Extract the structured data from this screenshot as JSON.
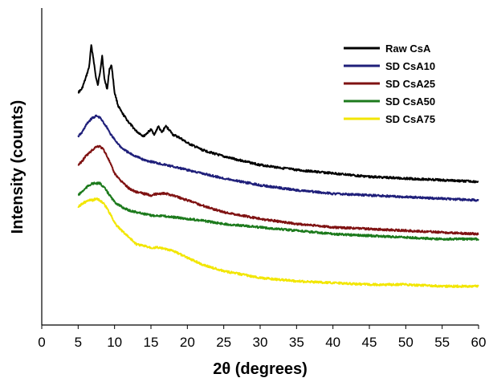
{
  "chart_data": {
    "type": "line",
    "title": "",
    "xlabel": "2θ (degrees)",
    "ylabel": "Intensity (counts)",
    "xlim": [
      0,
      60
    ],
    "x_ticks": [
      0,
      5,
      10,
      15,
      20,
      25,
      30,
      35,
      40,
      45,
      50,
      55,
      60
    ],
    "y_ticks_labeled": false,
    "grid": false,
    "legend_position": "top-right",
    "series": [
      {
        "name": "Raw CsA",
        "color": "#000000",
        "x": [
          5,
          5.5,
          6,
          6.5,
          6.8,
          7.1,
          7.4,
          7.7,
          8.0,
          8.3,
          8.6,
          9.0,
          9.3,
          9.6,
          10,
          10.5,
          11,
          12,
          13,
          14,
          15,
          15.5,
          16,
          16.5,
          17,
          17.5,
          18,
          19,
          20,
          22,
          25,
          30,
          35,
          40,
          45,
          50,
          55,
          60
        ],
        "y": [
          88,
          90,
          96,
          103,
          116,
          108,
          98,
          92,
          100,
          110,
          96,
          90,
          102,
          104,
          88,
          80,
          76,
          70,
          65,
          62,
          66,
          63,
          68,
          64,
          68,
          66,
          63,
          61,
          58,
          54,
          50,
          45,
          42,
          40,
          38,
          37,
          36,
          35
        ]
      },
      {
        "name": "SD CsA10",
        "color": "#1f1f7a",
        "x": [
          5,
          5.5,
          6,
          6.5,
          7,
          7.5,
          8,
          8.5,
          9,
          9.5,
          10,
          11,
          12,
          13,
          14,
          15,
          16,
          18,
          20,
          22,
          25,
          30,
          35,
          40,
          45,
          50,
          55,
          60
        ],
        "y": [
          62,
          64,
          68,
          71,
          73,
          74,
          73,
          70,
          67,
          63,
          60,
          55,
          52,
          50,
          48,
          47,
          46,
          44,
          42,
          40,
          37,
          33,
          30,
          28,
          27,
          26,
          25,
          24
        ]
      },
      {
        "name": "SD CsA25",
        "color": "#7f1212",
        "x": [
          5,
          5.5,
          6,
          6.5,
          7,
          7.5,
          8,
          8.5,
          9,
          9.5,
          10,
          11,
          12,
          13,
          14,
          15,
          16,
          17,
          18,
          20,
          22,
          25,
          30,
          35,
          40,
          45,
          50,
          55,
          60
        ],
        "y": [
          45,
          47,
          50,
          52,
          54,
          56,
          56,
          54,
          50,
          45,
          40,
          35,
          31,
          29,
          28,
          27,
          28,
          28,
          27,
          24,
          21,
          17,
          13,
          10,
          8,
          7,
          6,
          5,
          4
        ]
      },
      {
        "name": "SD CsA50",
        "color": "#1c7a1c",
        "x": [
          5,
          5.5,
          6,
          6.5,
          7,
          7.5,
          8,
          8.5,
          9,
          9.5,
          10,
          11,
          12,
          13,
          14,
          15,
          16,
          18,
          20,
          22,
          25,
          30,
          35,
          40,
          45,
          50,
          55,
          60
        ],
        "y": [
          27,
          29,
          31,
          33,
          34,
          34,
          34,
          32,
          29,
          26,
          23,
          20,
          18,
          17,
          16,
          15,
          15,
          14,
          13,
          12,
          10,
          8,
          6,
          4,
          3,
          2,
          1,
          1
        ]
      },
      {
        "name": "SD CsA75",
        "color": "#f2e600",
        "x": [
          5,
          5.5,
          6,
          6.5,
          7,
          7.5,
          8,
          8.5,
          9,
          9.5,
          10,
          10.5,
          11,
          12,
          13,
          14,
          15,
          16,
          17,
          18,
          20,
          22,
          25,
          30,
          35,
          40,
          45,
          50,
          55,
          60
        ],
        "y": [
          20,
          22,
          23,
          24,
          24,
          25,
          24,
          22,
          19,
          15,
          11,
          8,
          6,
          2,
          -2,
          -3,
          -4,
          -4,
          -5,
          -6,
          -10,
          -14,
          -18,
          -22,
          -24,
          -25,
          -26,
          -26,
          -27,
          -27
        ]
      }
    ]
  }
}
